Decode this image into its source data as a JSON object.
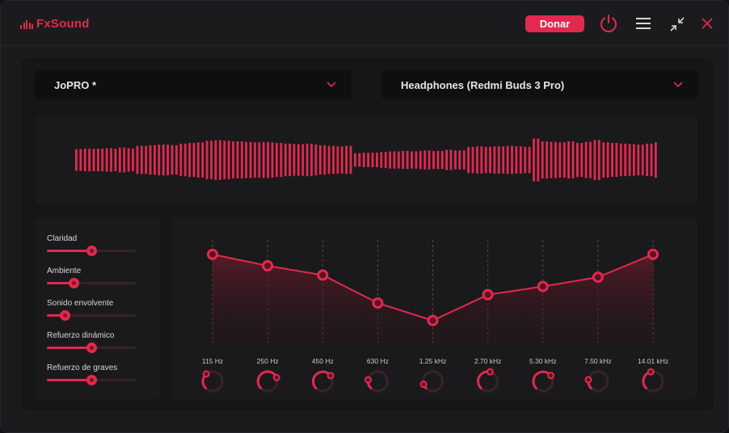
{
  "app": {
    "name": "FxSound",
    "donate_label": "Donar"
  },
  "colors": {
    "accent": "#e2294f",
    "background": "#1b1b1d",
    "panel": "#161618",
    "dropdown": "#0f0f11"
  },
  "topbar": {
    "icons": [
      "power-icon",
      "menu-icon",
      "minimize-icon",
      "close-icon"
    ]
  },
  "preset_dropdown": {
    "value": "JoPRO *"
  },
  "device_dropdown": {
    "value": "Headphones (Redmi Buds 3 Pro)"
  },
  "effects": [
    {
      "label": "Claridad",
      "level": 0.5
    },
    {
      "label": "Ambiente",
      "level": 0.3
    },
    {
      "label": "Sonido envolvente",
      "level": 0.2
    },
    {
      "label": "Refuerzo dinámico",
      "level": 0.5
    },
    {
      "label": "Refuerzo de graves",
      "level": 0.5
    }
  ],
  "equalizer": {
    "bands": [
      {
        "label": "115 Hz",
        "level": 0.86
      },
      {
        "label": "250 Hz",
        "level": 0.75
      },
      {
        "label": "450 Hz",
        "level": 0.66
      },
      {
        "label": "630 Hz",
        "level": 0.39
      },
      {
        "label": "1.25 kHz",
        "level": 0.22
      },
      {
        "label": "2.70 kHz",
        "level": 0.47
      },
      {
        "label": "5.30 kHz",
        "level": 0.55
      },
      {
        "label": "7.50 kHz",
        "level": 0.64
      },
      {
        "label": "14.01 kHz",
        "level": 0.86
      }
    ],
    "knobs": [
      0.35,
      0.75,
      0.7,
      0.2,
      0.1,
      0.55,
      0.7,
      0.2,
      0.45
    ]
  },
  "visualizer": {
    "levels": [
      0.48,
      0.48,
      0.5,
      0.5,
      0.5,
      0.5,
      0.5,
      0.52,
      0.52,
      0.5,
      0.55,
      0.55,
      0.52,
      0.5,
      0.62,
      0.62,
      0.62,
      0.65,
      0.65,
      0.68,
      0.68,
      0.68,
      0.65,
      0.65,
      0.72,
      0.72,
      0.75,
      0.75,
      0.78,
      0.78,
      0.85,
      0.85,
      0.88,
      0.88,
      0.85,
      0.85,
      0.82,
      0.82,
      0.82,
      0.8,
      0.8,
      0.78,
      0.78,
      0.8,
      0.8,
      0.78,
      0.75,
      0.75,
      0.72,
      0.72,
      0.7,
      0.7,
      0.7,
      0.72,
      0.72,
      0.68,
      0.65,
      0.65,
      0.62,
      0.62,
      0.6,
      0.6,
      0.62,
      0.62,
      0.3,
      0.3,
      0.32,
      0.32,
      0.32,
      0.32,
      0.35,
      0.35,
      0.38,
      0.38,
      0.38,
      0.4,
      0.4,
      0.38,
      0.38,
      0.4,
      0.42,
      0.42,
      0.4,
      0.4,
      0.4,
      0.45,
      0.45,
      0.42,
      0.42,
      0.42,
      0.58,
      0.58,
      0.6,
      0.6,
      0.58,
      0.58,
      0.6,
      0.6,
      0.6,
      0.62,
      0.62,
      0.6,
      0.6,
      0.58,
      0.58,
      0.95,
      0.95,
      0.82,
      0.82,
      0.8,
      0.8,
      0.78,
      0.78,
      0.82,
      0.82,
      0.75,
      0.75,
      0.8,
      0.8,
      0.88,
      0.88,
      0.78,
      0.78,
      0.75,
      0.75,
      0.72,
      0.72,
      0.7,
      0.7,
      0.68,
      0.68,
      0.72,
      0.72,
      0.78
    ]
  }
}
